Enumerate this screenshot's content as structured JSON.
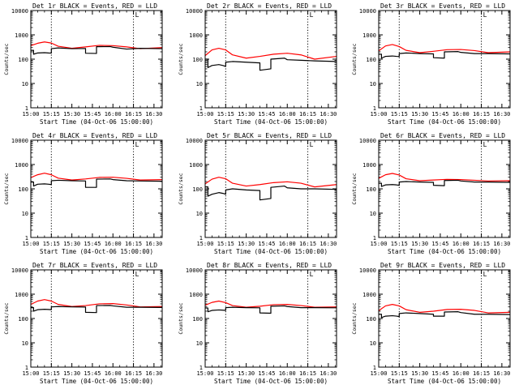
{
  "figure": {
    "x_tick_labels": [
      "15:00",
      "15:15",
      "15:30",
      "15:45",
      "16:00",
      "16:15",
      "16:30"
    ],
    "y_tick_labels": [
      "1",
      "10",
      "100",
      "1000",
      "10000"
    ],
    "corner_marker": "L",
    "colors": {
      "events": "#000000",
      "lld": "#ff0000",
      "axes": "#000000",
      "background": "#ffffff"
    }
  },
  "chart_data": [
    {
      "type": "line",
      "title": "Det 1r BLACK = Events, RED = LLD",
      "xlabel": "Start Time (04-Oct-06 15:00:00)",
      "ylabel": "Counts/sec",
      "x_unit": "minutes after 15:00",
      "xlim": [
        0,
        96
      ],
      "ylim": [
        1,
        10000
      ],
      "y_scale": "log",
      "x_ticks": [
        0,
        15,
        30,
        45,
        60,
        75,
        90
      ],
      "y_ticks": [
        1,
        10,
        100,
        1000,
        10000
      ],
      "vlines": [
        15,
        75
      ],
      "series": [
        {
          "name": "Events",
          "color": "#000000",
          "x": [
            0,
            2,
            2,
            5,
            10,
            13,
            15,
            15,
            20,
            30,
            40,
            40,
            48,
            48,
            58,
            60,
            70,
            80,
            96
          ],
          "y": [
            230,
            230,
            160,
            180,
            185,
            180,
            178,
            270,
            290,
            270,
            275,
            175,
            172,
            325,
            330,
            310,
            260,
            280,
            270
          ]
        },
        {
          "name": "LLD",
          "color": "#ff0000",
          "x": [
            0,
            5,
            10,
            15,
            20,
            30,
            40,
            50,
            60,
            70,
            80,
            96
          ],
          "y": [
            360,
            450,
            510,
            460,
            340,
            280,
            320,
            370,
            360,
            320,
            270,
            300
          ]
        }
      ]
    },
    {
      "type": "line",
      "title": "Det 2r BLACK = Events, RED = LLD",
      "xlabel": "Start Time (04-Oct-06 15:00:00)",
      "ylabel": "Counts/sec",
      "x_unit": "minutes after 15:00",
      "xlim": [
        0,
        96
      ],
      "ylim": [
        1,
        10000
      ],
      "y_scale": "log",
      "x_ticks": [
        0,
        15,
        30,
        45,
        60,
        75,
        90
      ],
      "y_ticks": [
        1,
        10,
        100,
        1000,
        10000
      ],
      "vlines": [
        15,
        75
      ],
      "series": [
        {
          "name": "Events",
          "color": "#000000",
          "x": [
            0,
            2,
            2,
            5,
            10,
            13,
            15,
            15,
            20,
            30,
            40,
            40,
            48,
            48,
            58,
            60,
            70,
            80,
            96
          ],
          "y": [
            100,
            100,
            45,
            55,
            60,
            55,
            50,
            75,
            80,
            75,
            70,
            35,
            40,
            100,
            110,
            95,
            90,
            85,
            80
          ]
        },
        {
          "name": "LLD",
          "color": "#ff0000",
          "x": [
            0,
            5,
            10,
            15,
            20,
            30,
            40,
            50,
            60,
            70,
            80,
            96
          ],
          "y": [
            140,
            240,
            280,
            240,
            150,
            110,
            130,
            160,
            175,
            150,
            100,
            130
          ]
        }
      ]
    },
    {
      "type": "line",
      "title": "Det 3r BLACK = Events, RED = LLD",
      "xlabel": "Start Time (04-Oct-06 15:00:00)",
      "ylabel": "Counts/sec",
      "x_unit": "minutes after 15:00",
      "xlim": [
        0,
        96
      ],
      "ylim": [
        1,
        10000
      ],
      "y_scale": "log",
      "x_ticks": [
        0,
        15,
        30,
        45,
        60,
        75,
        90
      ],
      "y_ticks": [
        1,
        10,
        100,
        1000,
        10000
      ],
      "vlines": [
        15,
        75
      ],
      "series": [
        {
          "name": "Events",
          "color": "#000000",
          "x": [
            0,
            2,
            2,
            5,
            10,
            13,
            15,
            15,
            20,
            30,
            40,
            40,
            48,
            48,
            58,
            60,
            70,
            80,
            96
          ],
          "y": [
            160,
            160,
            110,
            130,
            135,
            130,
            128,
            170,
            180,
            170,
            165,
            115,
            110,
            200,
            205,
            190,
            170,
            170,
            165
          ]
        },
        {
          "name": "LLD",
          "color": "#ff0000",
          "x": [
            0,
            5,
            10,
            15,
            20,
            30,
            40,
            50,
            60,
            70,
            80,
            96
          ],
          "y": [
            220,
            350,
            400,
            330,
            230,
            185,
            210,
            245,
            250,
            225,
            185,
            200
          ]
        }
      ]
    },
    {
      "type": "line",
      "title": "Det 4r BLACK = Events, RED = LLD",
      "xlabel": "Start Time (04-Oct-06 15:00:00)",
      "ylabel": "Counts/sec",
      "x_unit": "minutes after 15:00",
      "xlim": [
        0,
        96
      ],
      "ylim": [
        1,
        10000
      ],
      "y_scale": "log",
      "x_ticks": [
        0,
        15,
        30,
        45,
        60,
        75,
        90
      ],
      "y_ticks": [
        1,
        10,
        100,
        1000,
        10000
      ],
      "vlines": [
        15,
        75
      ],
      "series": [
        {
          "name": "Events",
          "color": "#000000",
          "x": [
            0,
            2,
            2,
            5,
            10,
            13,
            15,
            15,
            20,
            30,
            40,
            40,
            48,
            48,
            58,
            60,
            70,
            80,
            96
          ],
          "y": [
            190,
            190,
            130,
            155,
            160,
            155,
            150,
            215,
            225,
            215,
            210,
            115,
            115,
            250,
            255,
            240,
            215,
            210,
            205
          ]
        },
        {
          "name": "LLD",
          "color": "#ff0000",
          "x": [
            0,
            5,
            10,
            15,
            20,
            30,
            40,
            50,
            60,
            70,
            80,
            96
          ],
          "y": [
            290,
            380,
            440,
            380,
            275,
            230,
            255,
            295,
            300,
            270,
            230,
            240
          ]
        }
      ]
    },
    {
      "type": "line",
      "title": "Det 5r BLACK = Events, RED = LLD",
      "xlabel": "Start Time (04-Oct-06 15:00:00)",
      "ylabel": "Counts/sec",
      "x_unit": "minutes after 15:00",
      "xlim": [
        0,
        96
      ],
      "ylim": [
        1,
        10000
      ],
      "y_scale": "log",
      "x_ticks": [
        0,
        15,
        30,
        45,
        60,
        75,
        90
      ],
      "y_ticks": [
        1,
        10,
        100,
        1000,
        10000
      ],
      "vlines": [
        15,
        75
      ],
      "series": [
        {
          "name": "Events",
          "color": "#000000",
          "x": [
            0,
            2,
            2,
            5,
            10,
            13,
            15,
            15,
            20,
            30,
            40,
            40,
            48,
            48,
            58,
            60,
            70,
            80,
            96
          ],
          "y": [
            120,
            120,
            50,
            60,
            70,
            65,
            60,
            90,
            100,
            90,
            85,
            35,
            40,
            115,
            130,
            110,
            100,
            100,
            95
          ]
        },
        {
          "name": "LLD",
          "color": "#ff0000",
          "x": [
            0,
            5,
            10,
            15,
            20,
            30,
            40,
            50,
            60,
            70,
            80,
            96
          ],
          "y": [
            160,
            250,
            300,
            260,
            170,
            130,
            150,
            180,
            195,
            170,
            120,
            150
          ]
        }
      ]
    },
    {
      "type": "line",
      "title": "Det 6r BLACK = Events, RED = LLD",
      "xlabel": "Start Time (04-Oct-06 15:00:00)",
      "ylabel": "Counts/sec",
      "x_unit": "minutes after 15:00",
      "xlim": [
        0,
        96
      ],
      "ylim": [
        1,
        10000
      ],
      "y_scale": "log",
      "x_ticks": [
        0,
        15,
        30,
        45,
        60,
        75,
        90
      ],
      "y_ticks": [
        1,
        10,
        100,
        1000,
        10000
      ],
      "vlines": [
        15,
        75
      ],
      "series": [
        {
          "name": "Events",
          "color": "#000000",
          "x": [
            0,
            2,
            2,
            5,
            10,
            13,
            15,
            15,
            20,
            30,
            40,
            40,
            48,
            48,
            58,
            60,
            70,
            80,
            96
          ],
          "y": [
            170,
            170,
            125,
            145,
            150,
            145,
            140,
            190,
            200,
            190,
            185,
            140,
            135,
            220,
            225,
            210,
            190,
            190,
            185
          ]
        },
        {
          "name": "LLD",
          "color": "#ff0000",
          "x": [
            0,
            5,
            10,
            15,
            20,
            30,
            40,
            50,
            60,
            70,
            80,
            96
          ],
          "y": [
            270,
            380,
            430,
            370,
            260,
            215,
            230,
            245,
            240,
            225,
            210,
            215
          ]
        }
      ]
    },
    {
      "type": "line",
      "title": "Det 7r BLACK = Events, RED = LLD",
      "xlabel": "Start Time (04-Oct-06 15:00:00)",
      "ylabel": "Counts/sec",
      "x_unit": "minutes after 15:00",
      "xlim": [
        0,
        96
      ],
      "ylim": [
        1,
        10000
      ],
      "y_scale": "log",
      "x_ticks": [
        0,
        15,
        30,
        45,
        60,
        75,
        90
      ],
      "y_ticks": [
        1,
        10,
        100,
        1000,
        10000
      ],
      "vlines": [
        15,
        75
      ],
      "series": [
        {
          "name": "Events",
          "color": "#000000",
          "x": [
            0,
            2,
            2,
            5,
            10,
            13,
            15,
            15,
            20,
            30,
            40,
            40,
            48,
            48,
            58,
            60,
            70,
            80,
            96
          ],
          "y": [
            280,
            280,
            200,
            230,
            240,
            235,
            230,
            300,
            310,
            300,
            295,
            180,
            175,
            340,
            345,
            330,
            290,
            290,
            285
          ]
        },
        {
          "name": "LLD",
          "color": "#ff0000",
          "x": [
            0,
            5,
            10,
            15,
            20,
            30,
            40,
            50,
            60,
            70,
            80,
            96
          ],
          "y": [
            380,
            520,
            600,
            520,
            380,
            310,
            340,
            400,
            410,
            360,
            300,
            310
          ]
        }
      ]
    },
    {
      "type": "line",
      "title": "Det 8r BLACK = Events, RED = LLD",
      "xlabel": "Start Time (04-Oct-06 15:00:00)",
      "ylabel": "Counts/sec",
      "x_unit": "minutes after 15:00",
      "xlim": [
        0,
        96
      ],
      "ylim": [
        1,
        10000
      ],
      "y_scale": "log",
      "x_ticks": [
        0,
        15,
        30,
        45,
        60,
        75,
        90
      ],
      "y_ticks": [
        1,
        10,
        100,
        1000,
        10000
      ],
      "vlines": [
        15,
        75
      ],
      "series": [
        {
          "name": "Events",
          "color": "#000000",
          "x": [
            0,
            2,
            2,
            5,
            10,
            13,
            15,
            15,
            20,
            30,
            40,
            40,
            48,
            48,
            58,
            60,
            70,
            80,
            96
          ],
          "y": [
            270,
            270,
            190,
            215,
            225,
            220,
            215,
            280,
            290,
            280,
            275,
            170,
            165,
            320,
            330,
            310,
            280,
            280,
            275
          ]
        },
        {
          "name": "LLD",
          "color": "#ff0000",
          "x": [
            0,
            5,
            10,
            15,
            20,
            30,
            40,
            50,
            60,
            70,
            80,
            96
          ],
          "y": [
            350,
            460,
            520,
            450,
            340,
            290,
            320,
            370,
            380,
            340,
            290,
            300
          ]
        }
      ]
    },
    {
      "type": "line",
      "title": "Det 9r BLACK = Events, RED = LLD",
      "xlabel": "Start Time (04-Oct-06 15:00:00)",
      "ylabel": "Counts/sec",
      "x_unit": "minutes after 15:00",
      "xlim": [
        0,
        96
      ],
      "ylim": [
        1,
        10000
      ],
      "y_scale": "log",
      "x_ticks": [
        0,
        15,
        30,
        45,
        60,
        75,
        90
      ],
      "y_ticks": [
        1,
        10,
        100,
        1000,
        10000
      ],
      "vlines": [
        15,
        75
      ],
      "series": [
        {
          "name": "Events",
          "color": "#000000",
          "x": [
            0,
            2,
            2,
            5,
            10,
            13,
            15,
            15,
            20,
            30,
            40,
            40,
            48,
            48,
            58,
            60,
            70,
            80,
            96
          ],
          "y": [
            150,
            150,
            110,
            125,
            130,
            125,
            120,
            160,
            170,
            160,
            150,
            125,
            125,
            185,
            190,
            175,
            150,
            150,
            145
          ]
        },
        {
          "name": "LLD",
          "color": "#ff0000",
          "x": [
            0,
            5,
            10,
            15,
            20,
            30,
            40,
            50,
            60,
            70,
            80,
            96
          ],
          "y": [
            210,
            330,
            380,
            330,
            230,
            180,
            200,
            235,
            240,
            215,
            170,
            180
          ]
        }
      ]
    }
  ]
}
